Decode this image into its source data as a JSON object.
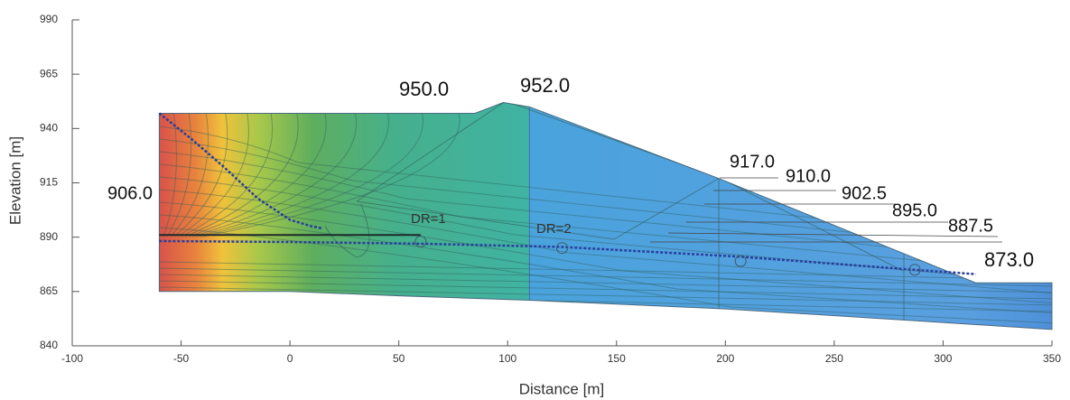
{
  "chart_data": {
    "type": "cross-section",
    "xlabel": "Distance [m]",
    "ylabel": "Elevation [m]",
    "xlim": [
      -100,
      350
    ],
    "ylim": [
      840,
      990
    ],
    "xticks": [
      -100,
      -50,
      0,
      50,
      100,
      150,
      200,
      250,
      300,
      350
    ],
    "yticks": [
      840,
      865,
      890,
      915,
      940,
      965,
      990
    ],
    "outline": {
      "x": [
        -60,
        85,
        98,
        110,
        197,
        315,
        350,
        350,
        280,
        200,
        110,
        50,
        0,
        -60
      ],
      "y": [
        947,
        947,
        952,
        950,
        917,
        869,
        869,
        847.5,
        852,
        857,
        861,
        863,
        865,
        865
      ]
    },
    "zone_boundaries": [
      110,
      197,
      282
    ],
    "phreatic_lines": [
      {
        "x": [
          -60,
          -45,
          -30,
          -15,
          0,
          10,
          15
        ],
        "y": [
          947,
          935,
          922,
          908,
          898,
          895,
          894
        ],
        "color": "#2a3f9e"
      },
      {
        "x": [
          -60,
          0,
          60,
          125,
          207,
          287,
          315
        ],
        "y": [
          888.2,
          887.8,
          887,
          885.5,
          881,
          875,
          873
        ],
        "color": "#2a3f9e"
      }
    ],
    "reservoir_bottom": {
      "x": [
        -60,
        60
      ],
      "y": [
        891,
        891
      ]
    },
    "drains": {
      "x": [
        60,
        125,
        207,
        287
      ],
      "y": [
        888,
        885,
        879,
        875
      ]
    },
    "annotations": [
      "950.0",
      "952.0",
      "906.0",
      "917.0",
      "910.0",
      "902.5",
      "895.0",
      "887.5",
      "873.0",
      "DR=1",
      "DR=2"
    ]
  }
}
